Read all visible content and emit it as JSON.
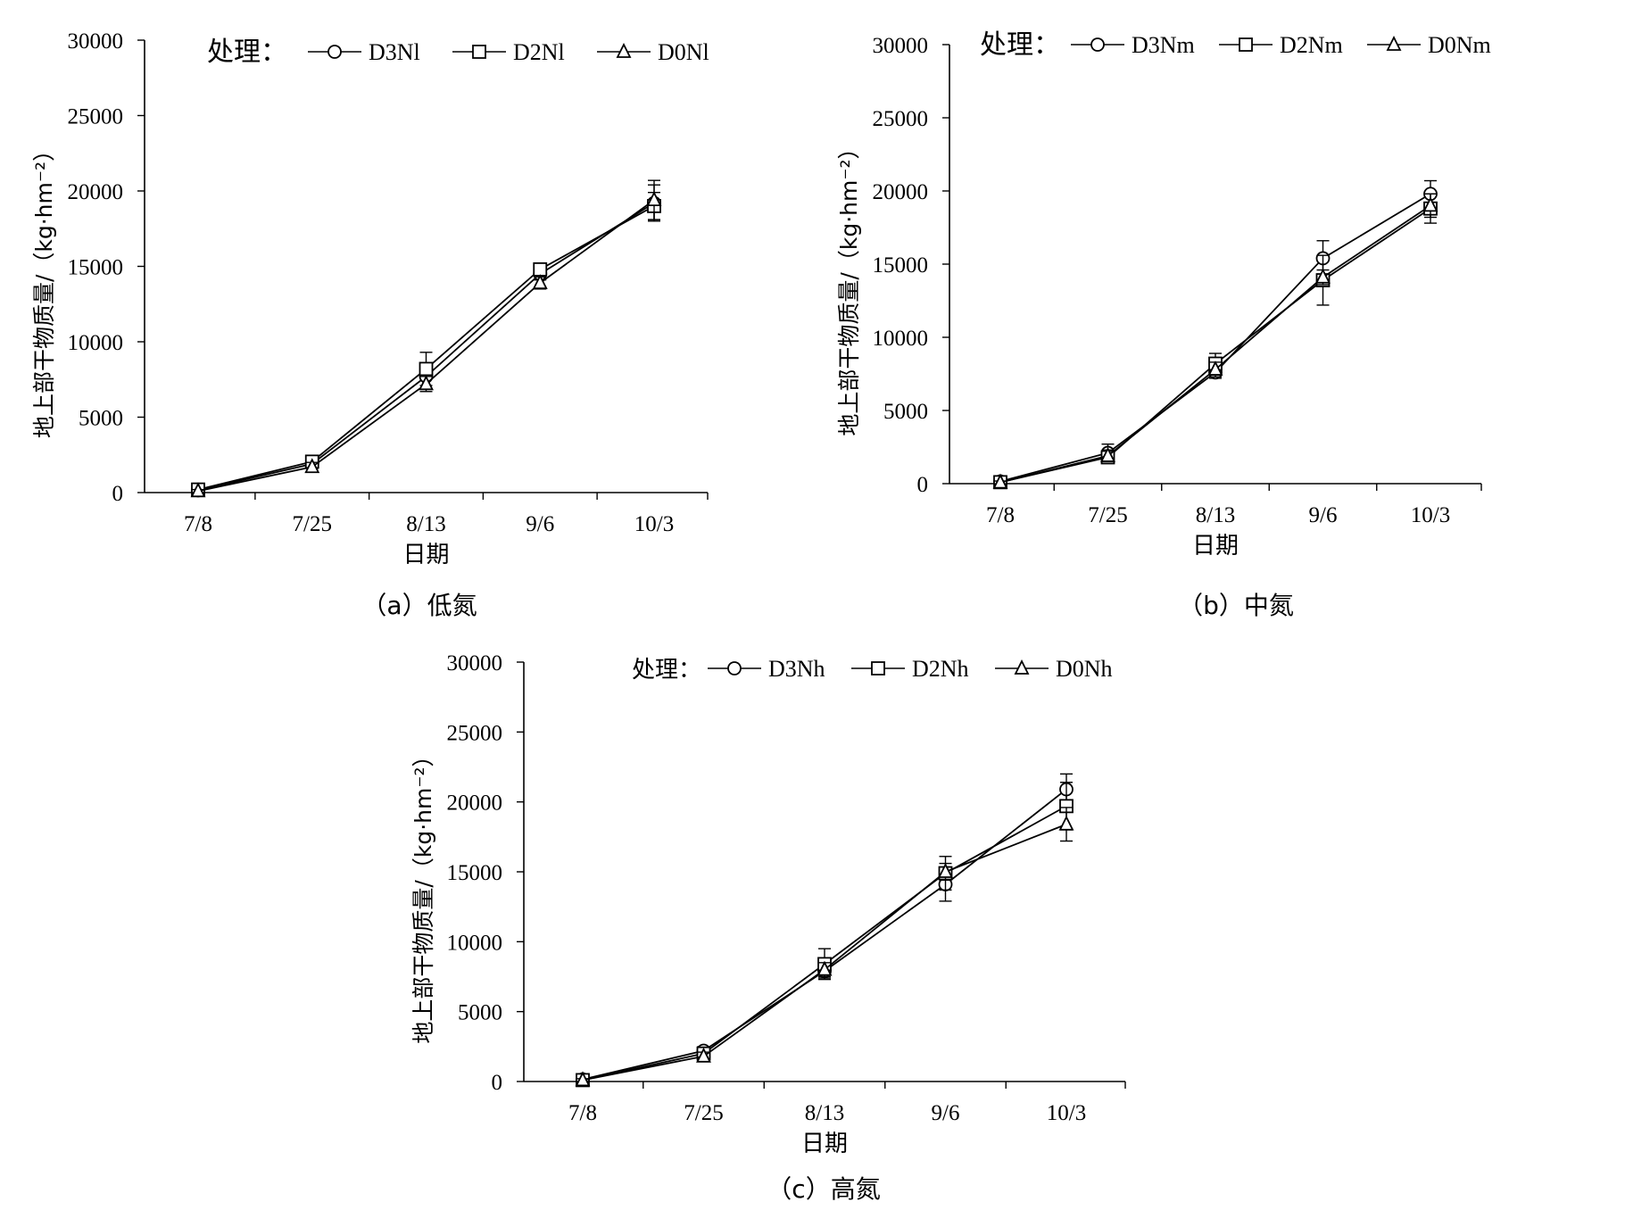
{
  "chart_data": [
    {
      "type": "line",
      "caption": "（a）低氮",
      "xlabel": "日期",
      "ylabel": "地上部干物质量/（kg·hm⁻²）",
      "categories": [
        "7/8",
        "7/25",
        "8/13",
        "9/6",
        "10/3"
      ],
      "ylim": [
        0,
        30000
      ],
      "yticks": [
        "0",
        "5000",
        "10000",
        "15000",
        "20000",
        "25000",
        "30000"
      ],
      "legend_title": "处理：",
      "legend_position": "top",
      "grid": false,
      "series": [
        {
          "name": "D3Nl",
          "marker": "circle",
          "values": [
            150,
            1900,
            7700,
            14500,
            19200
          ],
          "error": [
            100,
            300,
            800,
            400,
            1200
          ]
        },
        {
          "name": "D2Nl",
          "marker": "square",
          "values": [
            200,
            2050,
            8200,
            14800,
            19000
          ],
          "error": [
            100,
            300,
            1100,
            400,
            900
          ]
        },
        {
          "name": "D0Nl",
          "marker": "triangle",
          "values": [
            100,
            1700,
            7200,
            13900,
            19400
          ],
          "error": [
            100,
            300,
            500,
            400,
            1300
          ]
        }
      ]
    },
    {
      "type": "line",
      "caption": "（b）中氮",
      "xlabel": "日期",
      "ylabel": "地上部干物质量/（kg·hm⁻²）",
      "categories": [
        "7/8",
        "7/25",
        "8/13",
        "9/6",
        "10/3"
      ],
      "ylim": [
        0,
        30000
      ],
      "yticks": [
        "0",
        "5000",
        "10000",
        "15000",
        "20000",
        "25000",
        "30000"
      ],
      "legend_title": "处理：",
      "legend_position": "top",
      "grid": false,
      "series": [
        {
          "name": "D3Nm",
          "marker": "circle",
          "values": [
            150,
            2100,
            7600,
            15400,
            19800
          ],
          "error": [
            100,
            600,
            400,
            1200,
            900
          ]
        },
        {
          "name": "D2Nm",
          "marker": "square",
          "values": [
            100,
            1800,
            8200,
            13900,
            18800
          ],
          "error": [
            100,
            400,
            700,
            1700,
            1000
          ]
        },
        {
          "name": "D0Nm",
          "marker": "triangle",
          "values": [
            80,
            1900,
            7800,
            14100,
            19000
          ],
          "error": [
            100,
            400,
            500,
            500,
            800
          ]
        }
      ]
    },
    {
      "type": "line",
      "caption": "（c）高氮",
      "xlabel": "日期",
      "ylabel": "地上部干物质量/（kg·hm⁻²）",
      "categories": [
        "7/8",
        "7/25",
        "8/13",
        "9/6",
        "10/3"
      ],
      "ylim": [
        0,
        30000
      ],
      "yticks": [
        "0",
        "5000",
        "10000",
        "15000",
        "20000",
        "25000",
        "30000"
      ],
      "legend_title": "处理：",
      "legend_position": "top",
      "grid": false,
      "series": [
        {
          "name": "D3Nh",
          "marker": "circle",
          "values": [
            150,
            2200,
            7900,
            14100,
            20900
          ],
          "error": [
            100,
            300,
            500,
            1200,
            1100
          ]
        },
        {
          "name": "D2Nh",
          "marker": "square",
          "values": [
            100,
            2000,
            8400,
            14900,
            19700
          ],
          "error": [
            100,
            300,
            1100,
            1200,
            1700
          ]
        },
        {
          "name": "D0Nh",
          "marker": "triangle",
          "values": [
            100,
            1800,
            8000,
            15000,
            18400
          ],
          "error": [
            100,
            300,
            500,
            600,
            1200
          ]
        }
      ]
    }
  ]
}
